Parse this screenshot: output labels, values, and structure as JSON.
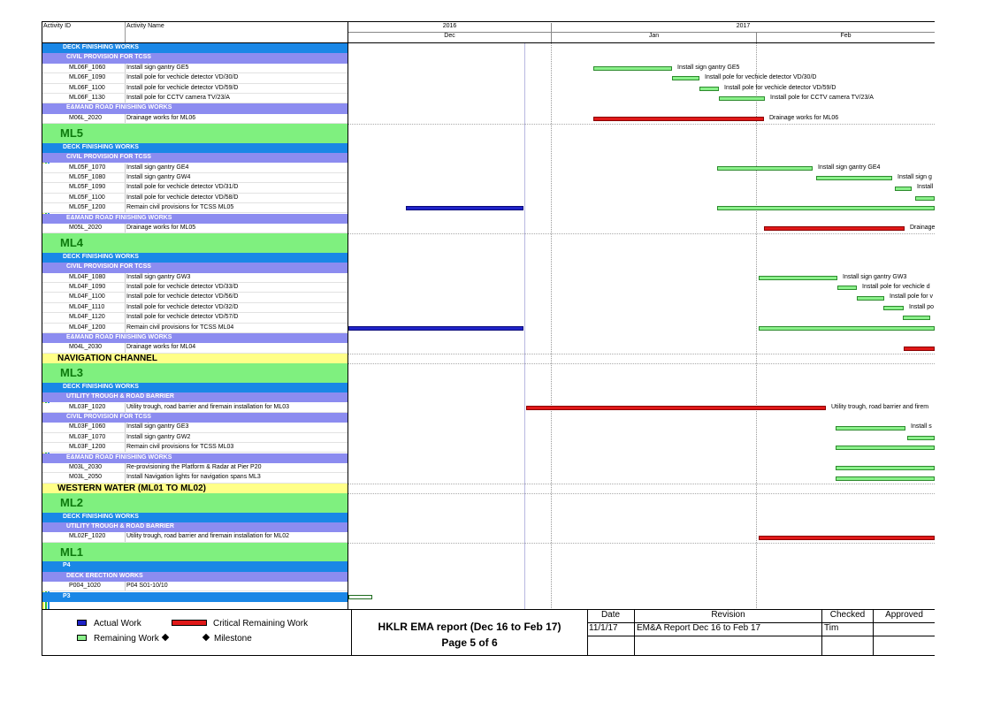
{
  "header": {
    "col_activity_id": "Activity ID",
    "col_activity_name": "Activity Name",
    "years": [
      "2016",
      "2017"
    ],
    "months": [
      "Dec",
      "Jan",
      "Feb"
    ]
  },
  "colors": {
    "wbs_level1": "#1a87e6",
    "wbs_level2": "#8c8cf0",
    "milestone_band": "#7ff07f",
    "section_band": "#ffff88",
    "remaining_work": "#8af08a",
    "critical_remaining": "#e01818",
    "actual_work": "#1f23c8"
  },
  "rows": [
    {
      "type": "wbs1",
      "label": "DECK FINISHING WORKS"
    },
    {
      "type": "wbs2",
      "label": "CIVIL PROVISION FOR TCSS"
    },
    {
      "type": "act",
      "id": "ML06F_1060",
      "name": "Install sign gantry GE5",
      "bar": "rem",
      "bar_label": "Install sign gantry GE5"
    },
    {
      "type": "act",
      "id": "ML06F_1090",
      "name": "Install pole for vechicle detector VD/30/D",
      "bar": "rem",
      "bar_label": "Install pole for vechicle detector VD/30/D"
    },
    {
      "type": "act",
      "id": "ML06F_1100",
      "name": "Install pole for vechicle detector VD/59/D",
      "bar": "rem",
      "bar_label": "Install pole for vechicle detector VD/59/D"
    },
    {
      "type": "act",
      "id": "ML06F_1130",
      "name": "Install pole for CCTV camera TV/23/A",
      "bar": "rem",
      "bar_label": "Install pole for CCTV camera TV/23/A"
    },
    {
      "type": "wbs2",
      "label": "E&MAND ROAD FINISHING WORKS"
    },
    {
      "type": "act",
      "id": "M06L_2020",
      "name": "Drainage works for ML06",
      "bar": "crit",
      "bar_label": "Drainage works for ML06"
    },
    {
      "type": "big",
      "label": "ML5"
    },
    {
      "type": "wbs1",
      "label": "DECK FINISHING WORKS"
    },
    {
      "type": "wbs2",
      "label": "CIVIL PROVISION FOR TCSS"
    },
    {
      "type": "act",
      "id": "ML05F_1070",
      "name": "Install sign gantry GE4",
      "bar": "rem",
      "bar_label": "Install sign gantry GE4"
    },
    {
      "type": "act",
      "id": "ML05F_1080",
      "name": "Install sign gantry GW4",
      "bar": "rem",
      "bar_label": "Install sign g"
    },
    {
      "type": "act",
      "id": "ML05F_1090",
      "name": "Install pole for vechicle detector VD/31/D",
      "bar": "rem",
      "bar_label": "Install"
    },
    {
      "type": "act",
      "id": "ML05F_1100",
      "name": "Install pole for vechicle detector VD/58/D",
      "bar": "rem",
      "bar_label": ""
    },
    {
      "type": "act",
      "id": "ML05F_1200",
      "name": "Remain civil provisions for TCSS ML05",
      "bar": "act+rem",
      "bar_label": ""
    },
    {
      "type": "wbs2",
      "label": "E&MAND ROAD FINISHING WORKS"
    },
    {
      "type": "act",
      "id": "M05L_2020",
      "name": "Drainage works for ML05",
      "bar": "crit",
      "bar_label": "Drainage"
    },
    {
      "type": "big",
      "label": "ML4"
    },
    {
      "type": "wbs1",
      "label": "DECK FINISHING WORKS"
    },
    {
      "type": "wbs2",
      "label": "CIVIL PROVISION FOR TCSS"
    },
    {
      "type": "act",
      "id": "ML04F_1080",
      "name": "Install sign gantry GW3",
      "bar": "rem",
      "bar_label": "Install sign gantry GW3"
    },
    {
      "type": "act",
      "id": "ML04F_1090",
      "name": "Install pole for vechicle detector VD/33/D",
      "bar": "rem",
      "bar_label": "Install pole for vechicle d"
    },
    {
      "type": "act",
      "id": "ML04F_1100",
      "name": "Install pole for vechicle detector VD/56/D",
      "bar": "rem",
      "bar_label": "Install pole for v"
    },
    {
      "type": "act",
      "id": "ML04F_1110",
      "name": "Install pole for vechicle detector VD/32/D",
      "bar": "rem",
      "bar_label": "Install po"
    },
    {
      "type": "act",
      "id": "ML04F_1120",
      "name": "Install pole for vechicle detector VD/57/D",
      "bar": "rem",
      "bar_label": ""
    },
    {
      "type": "act",
      "id": "ML04F_1200",
      "name": "Remain civil provisions for TCSS ML04",
      "bar": "act+rem",
      "bar_label": ""
    },
    {
      "type": "wbs2",
      "label": "E&MAND ROAD FINISHING WORKS"
    },
    {
      "type": "act",
      "id": "M04L_2030",
      "name": "Drainage works for ML04",
      "bar": "crit",
      "bar_label": ""
    },
    {
      "type": "nav",
      "label": "NAVIGATION CHANNEL"
    },
    {
      "type": "big",
      "label": "ML3"
    },
    {
      "type": "wbs1",
      "label": "DECK FINISHING WORKS"
    },
    {
      "type": "wbs2",
      "label": "UTILITY TROUGH & ROAD BARRIER"
    },
    {
      "type": "act",
      "id": "ML03F_1020",
      "name": "Utility trough, road barrier and firemain installation for ML03",
      "bar": "crit",
      "bar_label": "Utility trough, road barrier and firem"
    },
    {
      "type": "wbs2",
      "label": "CIVIL PROVISION FOR TCSS"
    },
    {
      "type": "act",
      "id": "ML03F_1060",
      "name": "Install sign gantry GE3",
      "bar": "rem",
      "bar_label": "Install s"
    },
    {
      "type": "act",
      "id": "ML03F_1070",
      "name": "Install sign gantry GW2",
      "bar": "rem",
      "bar_label": ""
    },
    {
      "type": "act",
      "id": "ML03F_1200",
      "name": "Remain civil provisions for TCSS ML03",
      "bar": "rem",
      "bar_label": ""
    },
    {
      "type": "wbs2",
      "label": "E&MAND ROAD FINISHING WORKS"
    },
    {
      "type": "act",
      "id": "M03L_2030",
      "name": "Re-provisioning the Platform & Radar at Pier P20",
      "bar": "rem",
      "bar_label": ""
    },
    {
      "type": "act",
      "id": "M03L_2050",
      "name": "Install Navigation lights for navigation spans ML3",
      "bar": "rem",
      "bar_label": ""
    },
    {
      "type": "nav",
      "label": "WESTERN WATER (ML01 TO ML02)"
    },
    {
      "type": "big",
      "label": "ML2"
    },
    {
      "type": "wbs1",
      "label": "DECK FINISHING WORKS"
    },
    {
      "type": "wbs2",
      "label": "UTILITY TROUGH & ROAD BARRIER"
    },
    {
      "type": "act",
      "id": "ML02F_1020",
      "name": "Utility trough, road barrier and firemain installation for ML02",
      "bar": "crit",
      "bar_label": ""
    },
    {
      "type": "big",
      "label": "ML1"
    },
    {
      "type": "wbs1",
      "label": "P4"
    },
    {
      "type": "wbs2",
      "label": "DECK ERECTION WORKS"
    },
    {
      "type": "act",
      "id": "P004_1020",
      "name": "P04 S01-10/10",
      "bar": "act",
      "bar_label": "P04 S01-10/10"
    },
    {
      "type": "wbs1",
      "label": "P3"
    }
  ],
  "legend": {
    "actual_work": "Actual Work",
    "critical_remaining": "Critical Remaining Work",
    "remaining_work": "Remaining Work",
    "milestone": "Milestone"
  },
  "title_block": {
    "title": "HKLR EMA report (Dec 16 to Feb 17)",
    "page": "Page 5 of 6"
  },
  "revision_table": {
    "headers": [
      "Date",
      "Revision",
      "Checked",
      "Approved"
    ],
    "row": [
      "11/1/17",
      "EM&A Report Dec 16 to Feb 17",
      "Tim",
      ""
    ]
  }
}
